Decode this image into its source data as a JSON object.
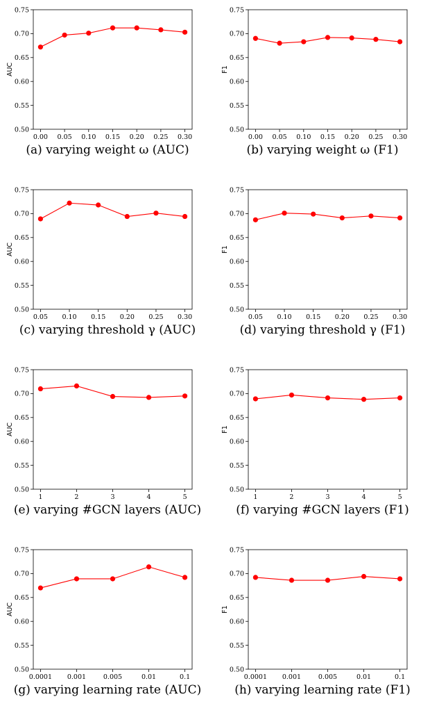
{
  "styles": {
    "line_color": "#ff0000",
    "marker_color": "#ff0000",
    "axis_color": "#000000"
  },
  "chart_data": [
    {
      "type": "line",
      "caption": "(a) varying weight ω (AUC)",
      "ylabel": "AUC",
      "xlabel": "",
      "title": "",
      "categories": [
        "0.00",
        "0.05",
        "0.10",
        "0.15",
        "0.20",
        "0.25",
        "0.30"
      ],
      "series": [
        {
          "values": [
            0.672,
            0.697,
            0.701,
            0.712,
            0.712,
            0.708,
            0.703
          ]
        }
      ],
      "ylim": [
        0.5,
        0.75
      ],
      "yticks": [
        "0.50",
        "0.55",
        "0.60",
        "0.65",
        "0.70",
        "0.75"
      ],
      "grid": false
    },
    {
      "type": "line",
      "caption": "(b) varying weight ω (F1)",
      "ylabel": "F1",
      "xlabel": "",
      "title": "",
      "categories": [
        "0.00",
        "0.05",
        "0.10",
        "0.15",
        "0.20",
        "0.25",
        "0.30"
      ],
      "series": [
        {
          "values": [
            0.69,
            0.68,
            0.683,
            0.692,
            0.691,
            0.688,
            0.683
          ]
        }
      ],
      "ylim": [
        0.5,
        0.75
      ],
      "yticks": [
        "0.50",
        "0.55",
        "0.60",
        "0.65",
        "0.70",
        "0.75"
      ],
      "grid": false
    },
    {
      "type": "line",
      "caption": "(c) varying threshold γ (AUC)",
      "ylabel": "AUC",
      "xlabel": "",
      "title": "",
      "categories": [
        "0.05",
        "0.10",
        "0.15",
        "0.20",
        "0.25",
        "0.30"
      ],
      "series": [
        {
          "values": [
            0.689,
            0.722,
            0.718,
            0.694,
            0.701,
            0.694
          ]
        }
      ],
      "ylim": [
        0.5,
        0.75
      ],
      "yticks": [
        "0.50",
        "0.55",
        "0.60",
        "0.65",
        "0.70",
        "0.75"
      ],
      "grid": false
    },
    {
      "type": "line",
      "caption": "(d) varying threshold γ (F1)",
      "ylabel": "F1",
      "xlabel": "",
      "title": "",
      "categories": [
        "0.05",
        "0.10",
        "0.15",
        "0.20",
        "0.25",
        "0.30"
      ],
      "series": [
        {
          "values": [
            0.687,
            0.701,
            0.699,
            0.691,
            0.695,
            0.691
          ]
        }
      ],
      "ylim": [
        0.5,
        0.75
      ],
      "yticks": [
        "0.50",
        "0.55",
        "0.60",
        "0.65",
        "0.70",
        "0.75"
      ],
      "grid": false
    },
    {
      "type": "line",
      "caption": "(e) varying #GCN layers (AUC)",
      "ylabel": "AUC",
      "xlabel": "",
      "title": "",
      "categories": [
        "1",
        "2",
        "3",
        "4",
        "5"
      ],
      "series": [
        {
          "values": [
            0.71,
            0.716,
            0.694,
            0.692,
            0.695
          ]
        }
      ],
      "ylim": [
        0.5,
        0.75
      ],
      "yticks": [
        "0.50",
        "0.55",
        "0.60",
        "0.65",
        "0.70",
        "0.75"
      ],
      "grid": false
    },
    {
      "type": "line",
      "caption": "(f) varying #GCN layers (F1)",
      "ylabel": "F1",
      "xlabel": "",
      "title": "",
      "categories": [
        "1",
        "2",
        "3",
        "4",
        "5"
      ],
      "series": [
        {
          "values": [
            0.689,
            0.697,
            0.691,
            0.688,
            0.691
          ]
        }
      ],
      "ylim": [
        0.5,
        0.75
      ],
      "yticks": [
        "0.50",
        "0.55",
        "0.60",
        "0.65",
        "0.70",
        "0.75"
      ],
      "grid": false
    },
    {
      "type": "line",
      "caption": "(g) varying learning rate (AUC)",
      "ylabel": "AUC",
      "xlabel": "",
      "title": "",
      "categories": [
        "0.0001",
        "0.001",
        "0.005",
        "0.01",
        "0.1"
      ],
      "series": [
        {
          "values": [
            0.67,
            0.689,
            0.689,
            0.714,
            0.692
          ]
        }
      ],
      "ylim": [
        0.5,
        0.75
      ],
      "yticks": [
        "0.50",
        "0.55",
        "0.60",
        "0.65",
        "0.70",
        "0.75"
      ],
      "grid": false
    },
    {
      "type": "line",
      "caption": "(h) varying learning rate (F1)",
      "ylabel": "F1",
      "xlabel": "",
      "title": "",
      "categories": [
        "0.0001",
        "0.001",
        "0.005",
        "0.01",
        "0.1"
      ],
      "series": [
        {
          "values": [
            0.692,
            0.686,
            0.686,
            0.694,
            0.689
          ]
        }
      ],
      "ylim": [
        0.5,
        0.75
      ],
      "yticks": [
        "0.50",
        "0.55",
        "0.60",
        "0.65",
        "0.70",
        "0.75"
      ],
      "grid": false
    }
  ]
}
